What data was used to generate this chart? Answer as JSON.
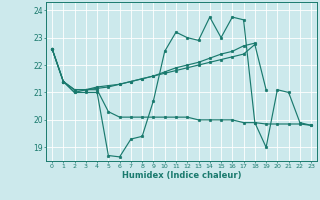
{
  "xlabel": "Humidex (Indice chaleur)",
  "bg_color": "#cce9ec",
  "grid_color": "#ffffff",
  "line_color": "#1a7a6e",
  "xlim": [
    -0.5,
    23.5
  ],
  "ylim": [
    18.5,
    24.3
  ],
  "yticks": [
    19,
    20,
    21,
    22,
    23,
    24
  ],
  "xticks": [
    0,
    1,
    2,
    3,
    4,
    5,
    6,
    7,
    8,
    9,
    10,
    11,
    12,
    13,
    14,
    15,
    16,
    17,
    18,
    19,
    20,
    21,
    22,
    23
  ],
  "series": [
    [
      22.6,
      21.4,
      21.0,
      21.0,
      21.0,
      18.7,
      18.65,
      19.3,
      19.4,
      20.7,
      22.5,
      23.2,
      23.0,
      22.9,
      23.75,
      23.0,
      23.75,
      23.65,
      19.9,
      19.0,
      21.1,
      21.0,
      19.9,
      19.8
    ],
    [
      22.6,
      21.4,
      21.0,
      21.1,
      21.1,
      20.3,
      20.1,
      20.1,
      20.1,
      20.1,
      20.1,
      20.1,
      20.1,
      20.0,
      20.0,
      20.0,
      20.0,
      19.9,
      19.9,
      19.85,
      19.85,
      19.85,
      19.85,
      19.8
    ],
    [
      22.6,
      21.4,
      21.1,
      21.1,
      21.2,
      21.25,
      21.3,
      21.4,
      21.5,
      21.6,
      21.7,
      21.8,
      21.9,
      22.0,
      22.1,
      22.2,
      22.3,
      22.4,
      22.75,
      21.1,
      null,
      null,
      null,
      null
    ],
    [
      22.6,
      21.4,
      21.1,
      21.1,
      21.15,
      21.2,
      21.3,
      21.4,
      21.5,
      21.6,
      21.75,
      21.9,
      22.0,
      22.1,
      22.25,
      22.4,
      22.5,
      22.7,
      22.8,
      null,
      null,
      null,
      null,
      null
    ]
  ]
}
